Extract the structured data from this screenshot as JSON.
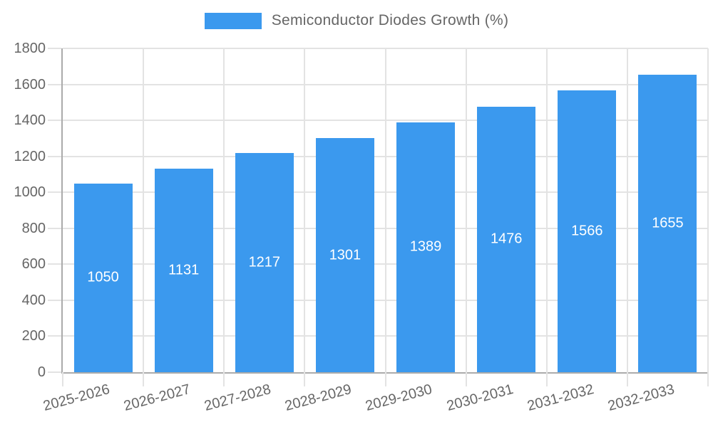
{
  "chart_data": {
    "type": "bar",
    "title": "Semiconductor Diodes Growth (%)",
    "categories": [
      "2025-2026",
      "2026-2027",
      "2027-2028",
      "2028-2029",
      "2029-2030",
      "2030-2031",
      "2031-2032",
      "2032-2033"
    ],
    "series": [
      {
        "name": "Semiconductor Diodes Growth (%)",
        "values": [
          1050,
          1131,
          1217,
          1301,
          1389,
          1476,
          1566,
          1655
        ]
      }
    ],
    "xlabel": "",
    "ylabel": "",
    "ylim": [
      0,
      1800
    ],
    "yticks": [
      0,
      200,
      400,
      600,
      800,
      1000,
      1200,
      1400,
      1600,
      1800
    ],
    "grid": true,
    "legend_position": "top",
    "value_labels_shown": true,
    "x_label_rotation_deg": -15
  },
  "colors": {
    "bar": "#3B99EE",
    "grid_line": "#E3E3E3",
    "axis_line": "#ABABAB",
    "tick_text": "#666666",
    "value_label_text": "#FFFFFF",
    "background": "#FFFFFF"
  }
}
